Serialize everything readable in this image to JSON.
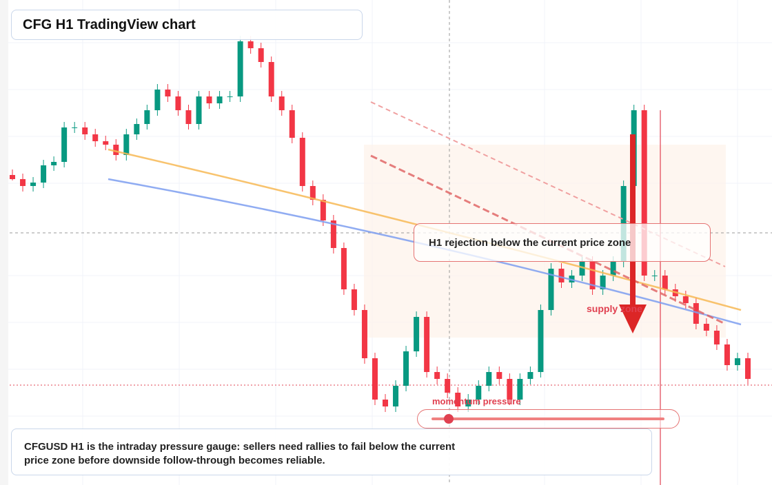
{
  "chart_data": {
    "type": "candlestick",
    "title": "CFG H1 TradingView chart",
    "annotations": {
      "rejection": "H1 rejection below the current price zone",
      "zone": "supply zone",
      "gauge": "momentum pressure",
      "caption": "CFGUSD H1 is the intraday pressure gauge: sellers need rallies to fail below the current price zone before downside follow-through becomes reliable."
    },
    "up_color": "#089981",
    "down_color": "#f23645",
    "ylim": [
      0,
      704
    ],
    "open": [
      450,
      444,
      434,
      439,
      464,
      469,
      519,
      519,
      509,
      499,
      494,
      479,
      509,
      524,
      544,
      574,
      564,
      544,
      524,
      564,
      554,
      564,
      564,
      644,
      634,
      614,
      564,
      544,
      504,
      434,
      414,
      384,
      344,
      284,
      254,
      184,
      124,
      114,
      144,
      194,
      244,
      164,
      154,
      134,
      114,
      124,
      144,
      164,
      154,
      124,
      154,
      164,
      254,
      314,
      294,
      304,
      324,
      284,
      304,
      324,
      434,
      544,
      304,
      304,
      284,
      274,
      264,
      234,
      224,
      204,
      174,
      184
    ],
    "high": [
      458,
      452,
      447,
      472,
      477,
      527,
      527,
      527,
      517,
      507,
      502,
      517,
      532,
      552,
      582,
      582,
      572,
      552,
      572,
      572,
      572,
      572,
      652,
      652,
      642,
      622,
      572,
      552,
      512,
      442,
      422,
      392,
      352,
      292,
      262,
      192,
      132,
      152,
      202,
      252,
      252,
      172,
      162,
      142,
      132,
      152,
      172,
      172,
      162,
      162,
      172,
      262,
      322,
      322,
      312,
      332,
      332,
      312,
      332,
      442,
      552,
      552,
      312,
      312,
      292,
      282,
      272,
      242,
      232,
      212,
      192,
      192
    ],
    "low": [
      442,
      426,
      426,
      431,
      456,
      461,
      511,
      501,
      491,
      486,
      471,
      471,
      501,
      516,
      536,
      556,
      536,
      516,
      516,
      546,
      546,
      556,
      556,
      626,
      606,
      556,
      536,
      496,
      426,
      406,
      376,
      336,
      276,
      246,
      176,
      116,
      106,
      106,
      136,
      186,
      156,
      146,
      126,
      106,
      106,
      116,
      136,
      146,
      116,
      116,
      146,
      156,
      246,
      286,
      286,
      296,
      276,
      276,
      296,
      316,
      426,
      296,
      296,
      276,
      266,
      256,
      226,
      216,
      196,
      166,
      166,
      146
    ],
    "close": [
      444,
      434,
      439,
      464,
      469,
      519,
      519,
      509,
      499,
      494,
      479,
      509,
      524,
      544,
      574,
      564,
      544,
      524,
      564,
      554,
      564,
      564,
      644,
      634,
      614,
      564,
      544,
      504,
      434,
      414,
      384,
      344,
      284,
      254,
      184,
      124,
      114,
      144,
      194,
      244,
      164,
      154,
      134,
      114,
      124,
      144,
      164,
      154,
      124,
      154,
      164,
      254,
      314,
      294,
      304,
      324,
      284,
      304,
      324,
      434,
      544,
      304,
      304,
      284,
      274,
      264,
      234,
      224,
      204,
      174,
      184,
      154
    ]
  }
}
